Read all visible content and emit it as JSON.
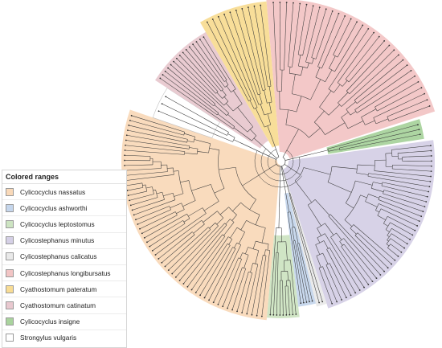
{
  "legend": {
    "title": "Colored ranges",
    "items": [
      {
        "label": "Cylicocyclus nassatus",
        "color": "#f9d9b9"
      },
      {
        "label": "Cylicocyclus ashworthi",
        "color": "#c5d6ec"
      },
      {
        "label": "Cylicocyclus leptostomus",
        "color": "#cde4c2"
      },
      {
        "label": "Cylicostephanus minutus",
        "color": "#d5d0e6"
      },
      {
        "label": "Cylicostephanus calicatus",
        "color": "#e9e9e9"
      },
      {
        "label": "Cylicostephanus longibursatus",
        "color": "#f2c5c5"
      },
      {
        "label": "Cyathostomum pateratum",
        "color": "#f8dc94"
      },
      {
        "label": "Cyathostomum catinatum",
        "color": "#e8c8cf"
      },
      {
        "label": "Cylicocyclus insigne",
        "color": "#a9d39d"
      },
      {
        "label": "Strongylus vulgaris",
        "color": "#ffffff"
      }
    ]
  },
  "tree": {
    "type": "circular phylogenetic tree",
    "clades": [
      {
        "name": "Cylicostephanus longibursatus",
        "leaves": 31
      },
      {
        "name": "Cylicocyclus insigne",
        "leaves": 3
      },
      {
        "name": "Cylicostephanus minutus",
        "leaves": 40
      },
      {
        "name": "Cylicostephanus calicatus",
        "leaves": 2
      },
      {
        "name": "Cylicocyclus ashworthi",
        "leaves": 5
      },
      {
        "name": "Cylicocyclus leptostomus",
        "leaves": 9
      },
      {
        "name": "Cylicocyclus nassatus",
        "leaves": 55
      },
      {
        "name": "Strongylus vulgaris",
        "leaves": 3
      },
      {
        "name": "Cyathostomum catinatum",
        "leaves": 15
      },
      {
        "name": "Cyathostomum pateratum",
        "leaves": 10
      }
    ]
  }
}
